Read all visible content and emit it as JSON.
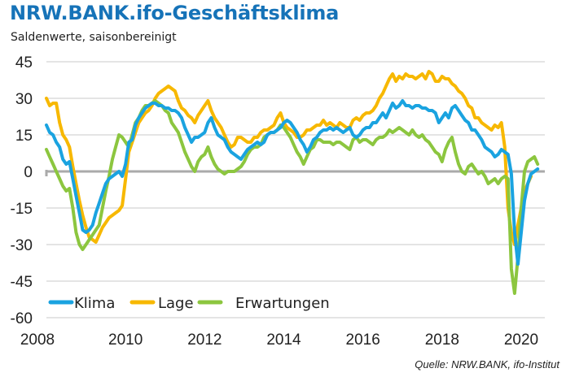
{
  "header": {
    "title": "NRW.BANK.ifo-Geschäftsklima",
    "subtitle": "Saldenwerte, saisonbereinigt"
  },
  "source": "Quelle: NRW.BANK, ifo-Institut",
  "chart_data": {
    "type": "line",
    "title": "NRW.BANK.ifo-Geschäftsklima",
    "subtitle": "Saldenwerte, saisonbereinigt",
    "xlabel": "",
    "ylabel": "",
    "x_start": "2008-01",
    "x_frequency": "monthly",
    "xlim": [
      2008,
      2020.7
    ],
    "ylim": [
      -60,
      45
    ],
    "yticks": [
      "45",
      "30",
      "15",
      "0",
      "-15",
      "-30",
      "-45",
      "-60"
    ],
    "ytick_values": [
      45,
      30,
      15,
      0,
      -15,
      -30,
      -45,
      -60
    ],
    "xticks": [
      "2008",
      "2010",
      "2012",
      "2014",
      "2016",
      "2018",
      "2020"
    ],
    "xtick_values": [
      2008,
      2010,
      2012,
      2014,
      2016,
      2018,
      2020
    ],
    "grid": true,
    "legend_position": "bottom-left",
    "series": [
      {
        "name": "Klima",
        "color": "#1aa3e0",
        "values": [
          19,
          16,
          15,
          12,
          10,
          5,
          3,
          4,
          -3,
          -10,
          -17,
          -24,
          -25,
          -24,
          -22,
          -17,
          -13,
          -9,
          -5,
          -3,
          -2,
          -1,
          0,
          -2,
          3,
          12,
          13,
          19,
          22,
          24,
          26,
          27,
          28,
          28,
          27,
          27,
          26,
          26,
          25,
          25,
          24,
          22,
          18,
          15,
          12,
          14,
          14,
          15,
          16,
          20,
          22,
          18,
          15,
          14,
          13,
          10,
          8,
          7,
          6,
          5,
          7,
          9,
          10,
          11,
          12,
          11,
          12,
          15,
          16,
          16,
          17,
          18,
          20,
          21,
          20,
          18,
          16,
          13,
          11,
          8,
          10,
          13,
          14,
          16,
          17,
          17,
          18,
          17,
          18,
          17,
          16,
          17,
          18,
          15,
          14,
          15,
          17,
          18,
          18,
          20,
          20,
          22,
          24,
          22,
          25,
          28,
          26,
          27,
          29,
          27,
          27,
          26,
          27,
          27,
          26,
          26,
          25,
          25,
          24,
          20,
          22,
          24,
          22,
          26,
          27,
          25,
          23,
          21,
          20,
          17,
          17,
          15,
          13,
          10,
          9,
          8,
          6,
          7,
          9,
          8,
          7,
          -1,
          -25,
          -38,
          -25,
          -12,
          -5,
          -1,
          0,
          1
        ]
      },
      {
        "name": "Lage",
        "color": "#f7b800",
        "values": [
          30,
          27,
          28,
          28,
          20,
          15,
          13,
          10,
          2,
          -5,
          -12,
          -18,
          -23,
          -27,
          -28,
          -29,
          -26,
          -23,
          -21,
          -19,
          -18,
          -17,
          -16,
          -14,
          -3,
          8,
          12,
          16,
          20,
          22,
          24,
          25,
          27,
          30,
          32,
          33,
          34,
          35,
          34,
          33,
          29,
          26,
          25,
          23,
          22,
          20,
          23,
          25,
          27,
          29,
          25,
          22,
          20,
          18,
          15,
          12,
          10,
          11,
          14,
          14,
          13,
          12,
          12,
          14,
          14,
          16,
          17,
          17,
          18,
          19,
          22,
          24,
          20,
          18,
          17,
          16,
          14,
          14,
          15,
          17,
          17,
          18,
          19,
          19,
          21,
          19,
          20,
          19,
          18,
          20,
          19,
          18,
          18,
          21,
          22,
          21,
          23,
          24,
          24,
          25,
          27,
          30,
          32,
          35,
          38,
          40,
          37,
          39,
          38,
          40,
          39,
          39,
          38,
          39,
          40,
          38,
          41,
          40,
          37,
          37,
          39,
          38,
          38,
          36,
          35,
          33,
          32,
          30,
          27,
          26,
          22,
          22,
          20,
          19,
          18,
          17,
          19,
          18,
          20,
          10,
          -15,
          -25,
          -30,
          -22,
          -15,
          -8,
          -5,
          -2
        ]
      },
      {
        "name": "Erwartungen",
        "color": "#8cc63f",
        "values": [
          9,
          6,
          3,
          0,
          -3,
          -6,
          -8,
          -7,
          -15,
          -25,
          -30,
          -32,
          -30,
          -28,
          -26,
          -24,
          -22,
          -15,
          -8,
          -2,
          5,
          10,
          15,
          14,
          12,
          10,
          15,
          20,
          22,
          25,
          27,
          27,
          28,
          29,
          28,
          27,
          25,
          24,
          20,
          18,
          16,
          12,
          8,
          5,
          2,
          0,
          4,
          6,
          7,
          10,
          6,
          3,
          1,
          0,
          -1,
          0,
          0,
          0,
          1,
          2,
          4,
          7,
          9,
          10,
          10,
          11,
          14,
          15,
          16,
          16,
          17,
          19,
          18,
          16,
          14,
          11,
          8,
          6,
          3,
          6,
          9,
          10,
          13,
          13,
          12,
          12,
          12,
          11,
          12,
          12,
          11,
          10,
          9,
          13,
          14,
          12,
          13,
          13,
          12,
          11,
          13,
          14,
          14,
          15,
          17,
          16,
          17,
          18,
          17,
          16,
          15,
          17,
          15,
          14,
          15,
          13,
          12,
          10,
          8,
          7,
          4,
          9,
          12,
          14,
          8,
          3,
          0,
          -1,
          2,
          3,
          1,
          -1,
          0,
          -2,
          -5,
          -4,
          -3,
          -5,
          -3,
          -2,
          -3,
          -40,
          -50,
          -35,
          -15,
          0,
          4,
          5,
          6,
          3
        ]
      }
    ]
  }
}
